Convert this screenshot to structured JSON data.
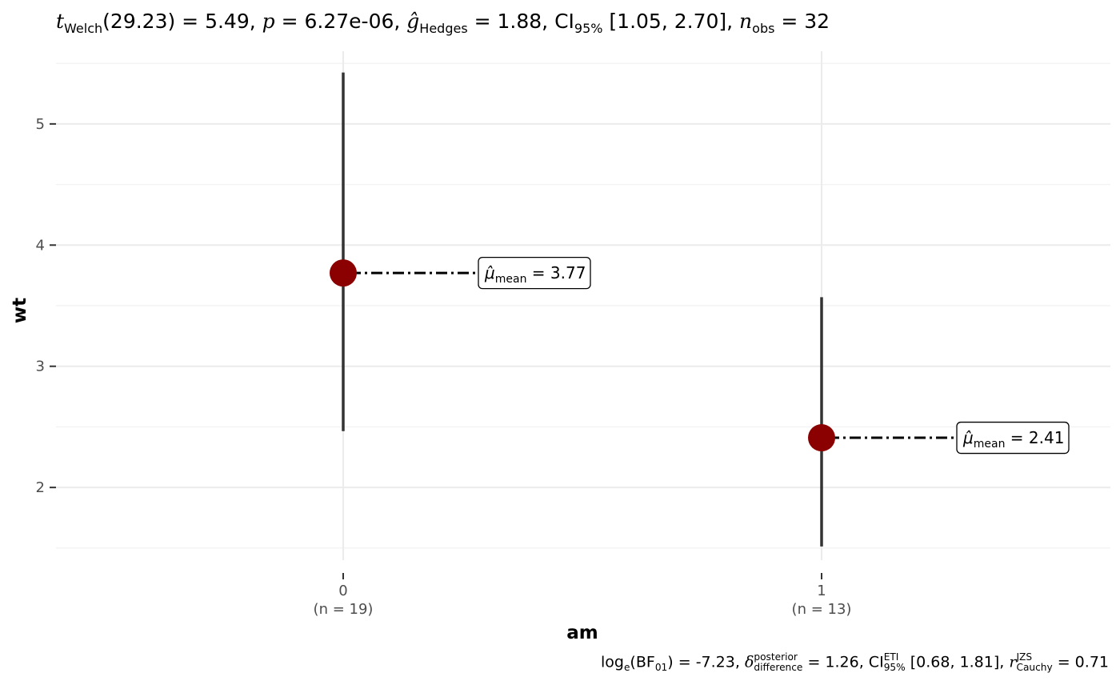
{
  "subtitle": {
    "t_symbol": "t",
    "t_sub": "Welch",
    "t_rest": "(29.23) = 5.49, ",
    "p_symbol": "p",
    "p_rest": " = 6.27e-06, ",
    "g_symbol": "ĝ",
    "g_sub": "Hedges",
    "g_rest": " = 1.88, CI",
    "ci_sub": "95%",
    "ci_rest": " [1.05, 2.70], ",
    "n_symbol": "n",
    "n_sub": "obs",
    "n_rest": " = 32"
  },
  "caption": {
    "log_text": "log",
    "log_sub": "e",
    "bf_text": "(BF",
    "bf_sub": "01",
    "bf_rest": ") = -7.23, ",
    "delta_symbol": "δ",
    "delta_sup": "posterior",
    "delta_sub": "difference",
    "delta_rest": " = 1.26, CI",
    "ci_sup": "ETI",
    "ci_sub": "95%",
    "ci_rest": " [0.68, 1.81], ",
    "r_symbol": "r",
    "r_sup": "JZS",
    "r_sub": "Cauchy",
    "r_rest": " = 0.71"
  },
  "chart_data": {
    "type": "scatter",
    "xlabel": "am",
    "ylabel": "wt",
    "categories": [
      "0",
      "1"
    ],
    "category_counts": [
      "(n = 19)",
      "(n = 13)"
    ],
    "ylim": [
      1.4,
      5.6
    ],
    "yticks": [
      2,
      3,
      4,
      5
    ],
    "ytick_labels": [
      "2",
      "3",
      "4",
      "5"
    ],
    "grid": true,
    "series": [
      {
        "category": "0",
        "min": 2.465,
        "max": 5.424,
        "mean": 3.77,
        "mean_label": "3.77"
      },
      {
        "category": "1",
        "min": 1.513,
        "max": 3.57,
        "mean": 2.41,
        "mean_label": "2.41"
      }
    ],
    "mean_symbol": "μ̂",
    "mean_sub": "mean",
    "colors": {
      "mean_point": "#8b0000",
      "range_line": "#333333",
      "grid_major": "#ebebeb",
      "grid_minor": "#f3f3f3",
      "tick_text": "#4d4d4d"
    }
  }
}
